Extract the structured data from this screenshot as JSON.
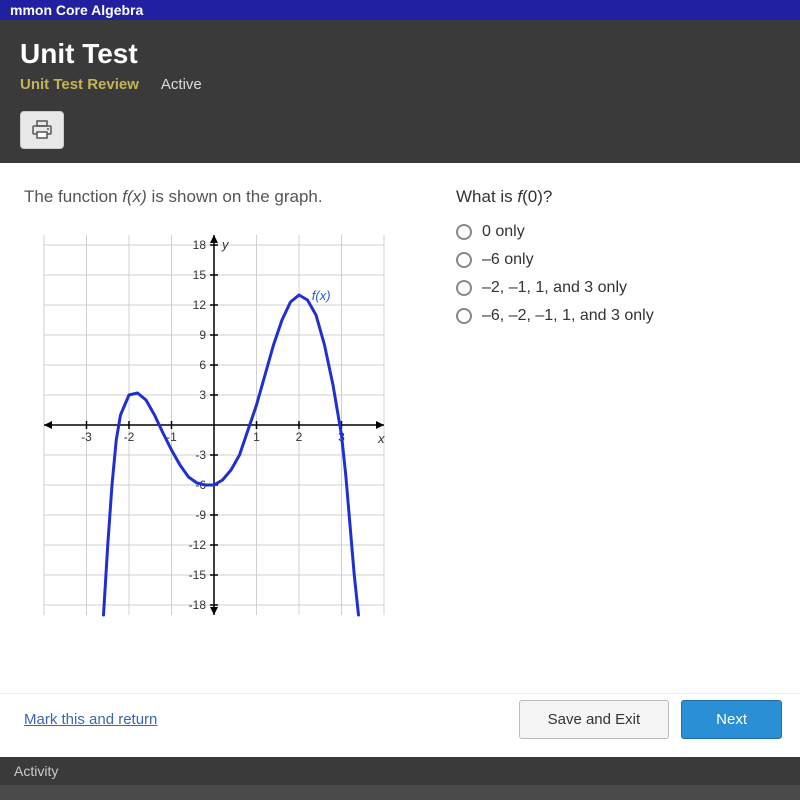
{
  "topbar": {
    "course": "mmon Core Algebra"
  },
  "header": {
    "title": "Unit Test",
    "review_label": "Unit Test Review",
    "active_label": "Active"
  },
  "prompt": {
    "prefix": "The function ",
    "fx": "f(x)",
    "suffix": " is shown on the graph."
  },
  "question": {
    "prefix": "What is ",
    "fx": "f",
    "arg": "(0)?",
    "options": [
      "0 only",
      "–6 only",
      "–2, –1, 1, and 3 only",
      "–6, –2, –1, 1, and 3 only"
    ]
  },
  "chart": {
    "type": "line",
    "x_label": "x",
    "y_label": "y",
    "f_label": "f(x)",
    "xlim": [
      -4,
      4
    ],
    "ylim": [
      -19,
      19
    ],
    "xtick_step": 1,
    "ytick_step": 3,
    "xticks_labeled": [
      -3,
      -2,
      -1,
      1,
      2,
      3
    ],
    "yticks_labeled": [
      18,
      15,
      12,
      9,
      6,
      3,
      -3,
      -6,
      -9,
      -12,
      -15,
      -18
    ],
    "grid_color": "#d0d0d0",
    "axis_color": "#000000",
    "line_color": "#2030d0",
    "line_width": 3,
    "f_label_color": "#2060d0",
    "background_color": "#ffffff",
    "tick_fontsize": 12,
    "label_fontsize": 13,
    "curve_points": [
      [
        -2.6,
        -19
      ],
      [
        -2.5,
        -12
      ],
      [
        -2.4,
        -6
      ],
      [
        -2.3,
        -1.5
      ],
      [
        -2.2,
        1
      ],
      [
        -2.0,
        3
      ],
      [
        -1.8,
        3.2
      ],
      [
        -1.6,
        2.5
      ],
      [
        -1.4,
        1
      ],
      [
        -1.2,
        -0.8
      ],
      [
        -1.0,
        -2.5
      ],
      [
        -0.8,
        -4
      ],
      [
        -0.6,
        -5.2
      ],
      [
        -0.4,
        -5.8
      ],
      [
        -0.2,
        -6
      ],
      [
        0.0,
        -6
      ],
      [
        0.2,
        -5.5
      ],
      [
        0.4,
        -4.5
      ],
      [
        0.6,
        -3
      ],
      [
        0.8,
        -0.5
      ],
      [
        1.0,
        2
      ],
      [
        1.2,
        5
      ],
      [
        1.4,
        8
      ],
      [
        1.6,
        10.5
      ],
      [
        1.8,
        12.3
      ],
      [
        2.0,
        13
      ],
      [
        2.2,
        12.5
      ],
      [
        2.4,
        11
      ],
      [
        2.6,
        8
      ],
      [
        2.8,
        4
      ],
      [
        3.0,
        -1
      ],
      [
        3.1,
        -5
      ],
      [
        3.2,
        -10
      ],
      [
        3.3,
        -15
      ],
      [
        3.4,
        -19
      ]
    ]
  },
  "footer": {
    "mark_label": "Mark this and return",
    "save_label": "Save and Exit",
    "next_label": "Next"
  },
  "activity": {
    "label": "Activity"
  }
}
